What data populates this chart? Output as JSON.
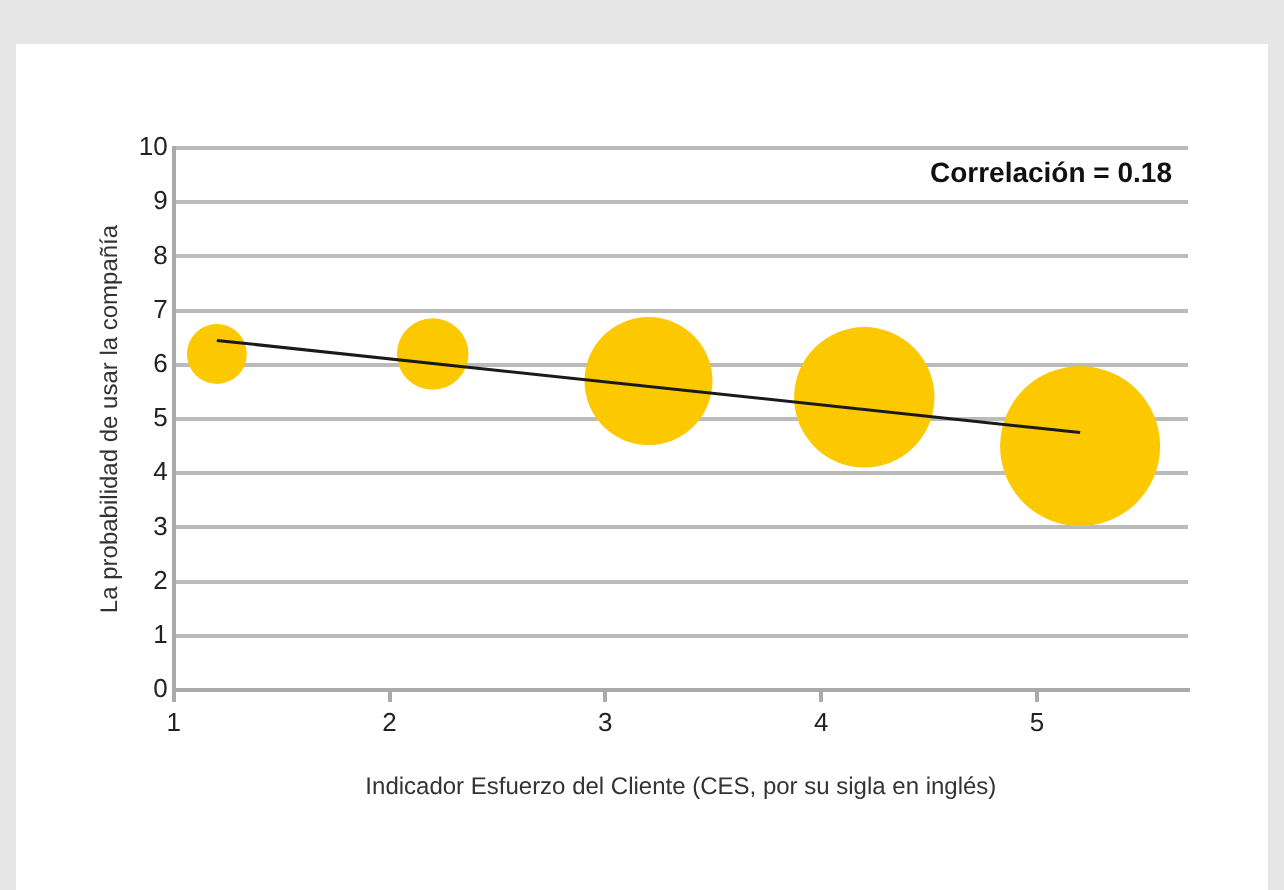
{
  "chart_data": {
    "type": "bubble",
    "xlabel": "Indicador Esfuerzo del Cliente (CES, por su sigla en inglés)",
    "ylabel": "La probabilidad de usar la compañía",
    "x": [
      1.2,
      2.2,
      3.2,
      4.2,
      5.2
    ],
    "series": [
      {
        "color": "#fcc800",
        "values": [
          6.2,
          6.2,
          5.7,
          5.4,
          4.5
        ],
        "sizes": [
          0.14,
          0.2,
          0.64,
          0.77,
          1
        ]
      },
      {
        "type": "line",
        "color": "#1a1a1a",
        "x": [
          1.2,
          5.2
        ],
        "values": [
          6.45,
          4.75
        ]
      }
    ],
    "xlim": [
      1,
      5.7
    ],
    "xticks": [
      1,
      2,
      3,
      4,
      5
    ],
    "ylim": [
      0,
      10
    ],
    "yticks": [
      0,
      1,
      2,
      3,
      4,
      5,
      6,
      7,
      8,
      9,
      10
    ],
    "grid": "y",
    "legend": false,
    "annotations": [
      "Correlación = 0.18"
    ]
  }
}
